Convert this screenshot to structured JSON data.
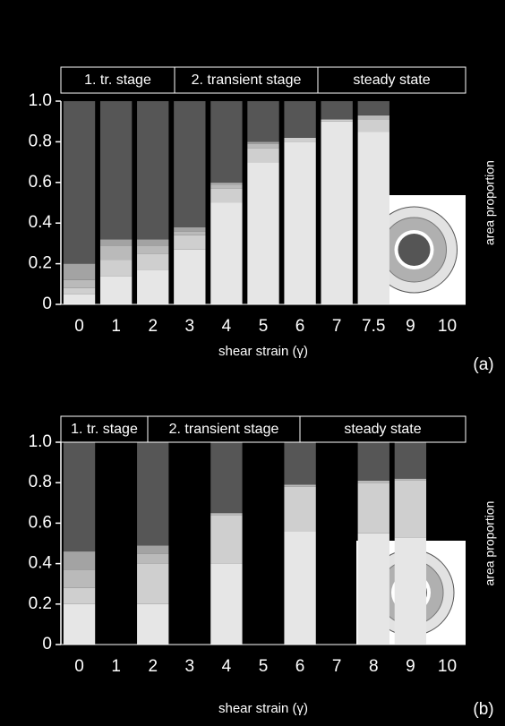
{
  "chart_data": [
    {
      "type": "bar",
      "stacked": true,
      "panel_label": "(a)",
      "stages": [
        "1. tr. stage",
        "2. transient stage",
        "steady state"
      ],
      "x_label": "shear strain (γ)",
      "y_label": "area proportion",
      "categories": [
        "0",
        "1",
        "2",
        "3",
        "4",
        "5",
        "6",
        "7",
        "7.5",
        "9",
        "10"
      ],
      "series": [
        {
          "color": "#e6e6e6",
          "values": [
            0.05,
            0.14,
            0.17,
            0.27,
            0.5,
            0.7,
            0.8,
            0.9,
            0.85,
            null,
            null
          ]
        },
        {
          "color": "#cfcfcf",
          "values": [
            0.03,
            0.08,
            0.08,
            0.07,
            0.07,
            0.07,
            0.02,
            0.01,
            0.06,
            null,
            null
          ]
        },
        {
          "color": "#bababa",
          "values": [
            0.04,
            0.07,
            0.04,
            0.02,
            0.02,
            0.02,
            0,
            0,
            0.02,
            null,
            null
          ]
        },
        {
          "color": "#a3a3a3",
          "values": [
            0.08,
            0.03,
            0.03,
            0.02,
            0.01,
            0.01,
            0,
            0,
            0,
            null,
            null
          ]
        },
        {
          "color": "#565656",
          "values": [
            0.8,
            0.68,
            0.68,
            0.62,
            0.4,
            0.2,
            0.18,
            0.09,
            0.07,
            null,
            null
          ]
        }
      ],
      "ylim": [
        0,
        1
      ],
      "yticks": [
        0,
        0.2,
        0.4,
        0.6,
        0.8,
        {
          "value": 1,
          "label": "1.0"
        }
      ]
    },
    {
      "type": "bar",
      "stacked": true,
      "panel_label": "(b)",
      "stages": [
        "1. tr. stage",
        "2. transient stage",
        "steady  state"
      ],
      "x_label": "shear strain (γ)",
      "y_label": "area proportion",
      "categories": [
        "0",
        "1",
        "2",
        "3",
        "4",
        "5",
        "6",
        "7",
        "8",
        "9",
        "10"
      ],
      "series": [
        {
          "color": "#e6e6e6",
          "values": [
            0.2,
            null,
            0.2,
            null,
            0.4,
            null,
            0.56,
            null,
            0.55,
            0.53,
            null
          ]
        },
        {
          "color": "#cfcfcf",
          "values": [
            0.08,
            null,
            0.2,
            null,
            0.24,
            null,
            0.22,
            null,
            0.25,
            0.28,
            null
          ]
        },
        {
          "color": "#bababa",
          "values": [
            0.09,
            null,
            0.05,
            null,
            0.01,
            null,
            0.01,
            null,
            0.01,
            0.01,
            null
          ]
        },
        {
          "color": "#a3a3a3",
          "values": [
            0.09,
            null,
            0.04,
            null,
            0,
            null,
            0,
            null,
            0,
            0,
            null
          ]
        },
        {
          "color": "#565656",
          "values": [
            0.54,
            null,
            0.51,
            null,
            0.35,
            null,
            0.21,
            null,
            0.19,
            0.18,
            null
          ]
        }
      ],
      "ylim": [
        0,
        1
      ],
      "yticks": [
        0,
        0.2,
        0.4,
        0.6,
        0.8,
        {
          "value": 1,
          "label": "1.0"
        }
      ]
    }
  ]
}
